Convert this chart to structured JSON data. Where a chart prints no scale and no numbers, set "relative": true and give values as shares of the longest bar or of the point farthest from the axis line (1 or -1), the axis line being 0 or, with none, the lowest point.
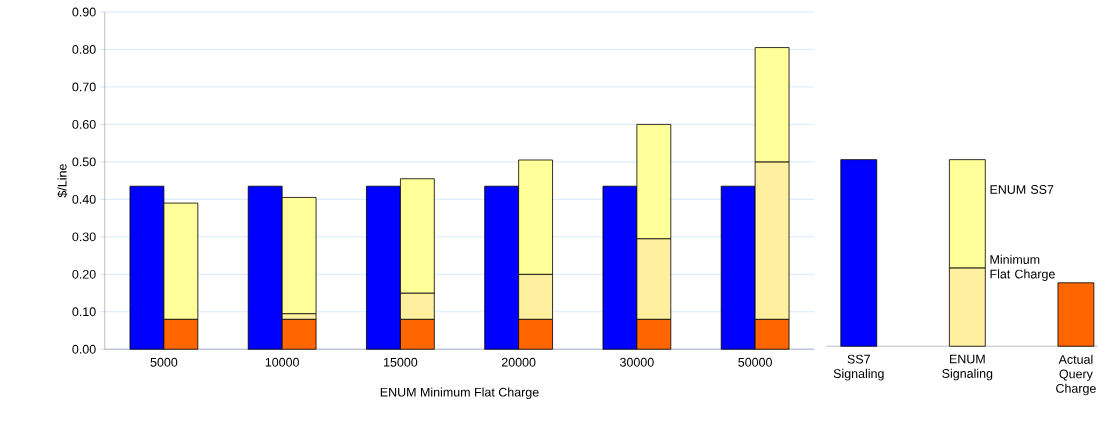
{
  "chart_data": [
    {
      "type": "bar",
      "xlabel": "ENUM Minimum Flat Charge",
      "ylabel": "$/Line",
      "categories": [
        "5000",
        "10000",
        "15000",
        "20000",
        "30000",
        "50000"
      ],
      "series": [
        {
          "color": "#0000ff",
          "values": [
            0.435,
            0.435,
            0.435,
            0.435,
            0.435,
            0.435
          ]
        }
      ],
      "ylim": [
        0,
        0.9
      ],
      "yticks": [
        {
          "value": 0,
          "label": "0.00"
        },
        {
          "value": 0.1,
          "label": "0.10"
        },
        {
          "value": 0.2,
          "label": "0.20"
        },
        {
          "value": 0.3,
          "label": "0.30"
        },
        {
          "value": 0.4,
          "label": "0.40"
        },
        {
          "value": 0.5,
          "label": "0.50"
        },
        {
          "value": 0.6,
          "label": "0.60"
        },
        {
          "value": 0.7,
          "label": "0.70"
        },
        {
          "value": 0.8,
          "label": "0.80"
        },
        {
          "value": 0.9,
          "label": "0.90"
        }
      ],
      "grid": "y"
    },
    {
      "type": "bar",
      "stacked": true,
      "tick_labels": false,
      "categories": [
        "5000",
        "10000",
        "15000",
        "20000",
        "30000",
        "50000"
      ],
      "series": [
        {
          "color": "#ff6600",
          "values": [
            0.08,
            0.08,
            0.08,
            0.08,
            0.08,
            0.08
          ]
        },
        {
          "color": "#fff0a0",
          "values": [
            null,
            0.015,
            0.07,
            0.12,
            0.215,
            0.42
          ]
        },
        {
          "color": "#ffff99",
          "values": [
            0.31,
            0.31,
            0.305,
            0.305,
            0.305,
            0.305
          ]
        }
      ],
      "ylim": [
        0,
        0.9
      ]
    },
    {
      "type": "bar",
      "stacked": true,
      "relative": true,
      "categories": [
        "SS7 Signaling",
        "ENUM Signaling",
        "Actual Query Charge"
      ],
      "series": [
        {
          "color": "#0000ff",
          "values": [
            1,
            null,
            null
          ]
        },
        {
          "color": "#fff0a0",
          "values": [
            null,
            0.42,
            null
          ]
        },
        {
          "color": "#ffff99",
          "values": [
            null,
            0.58,
            null
          ]
        },
        {
          "color": "#ff6600",
          "values": [
            null,
            null,
            0.34
          ]
        }
      ],
      "annotations": [
        "ENUM SS7",
        "Minimum Flat Charge"
      ]
    }
  ]
}
